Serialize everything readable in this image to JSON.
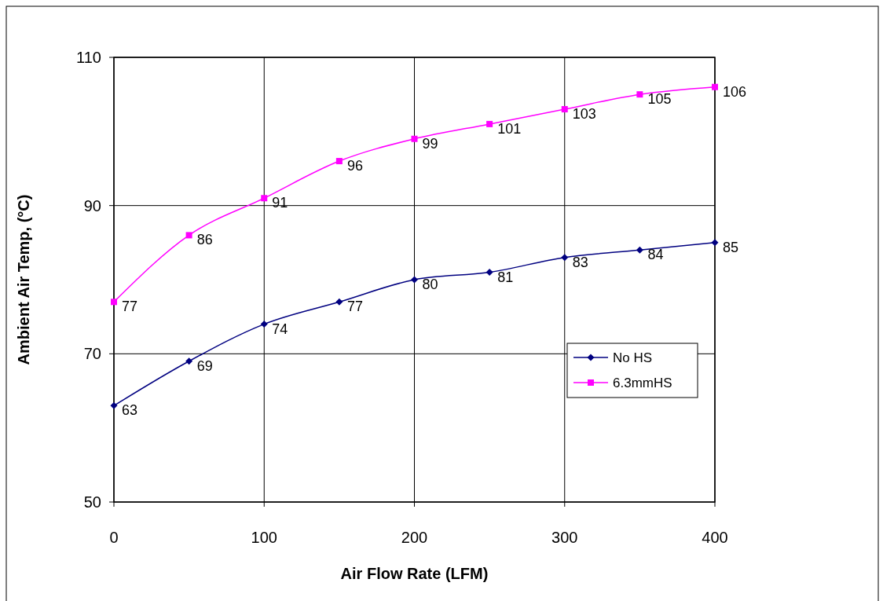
{
  "chart_data": {
    "type": "line",
    "xlabel": "Air Flow Rate (LFM)",
    "ylabel": "Ambient Air Temp, (°C)",
    "x": [
      0,
      50,
      100,
      150,
      200,
      250,
      300,
      350,
      400
    ],
    "series": [
      {
        "name": "No HS",
        "color": "#000080",
        "marker": "diamond",
        "values": [
          63,
          69,
          74,
          77,
          80,
          81,
          83,
          84,
          85
        ]
      },
      {
        "name": "6.3mmHS",
        "color": "#ff00ff",
        "marker": "square",
        "values": [
          77,
          86,
          91,
          96,
          99,
          101,
          103,
          105,
          106
        ]
      }
    ],
    "xlim": [
      0,
      400
    ],
    "xticks": [
      0,
      100,
      200,
      300,
      400
    ],
    "ylim": [
      50,
      110
    ],
    "yticks": [
      50,
      70,
      90,
      110
    ],
    "grid": true,
    "legend": "right",
    "data_labels": true,
    "line_style": "solid"
  }
}
